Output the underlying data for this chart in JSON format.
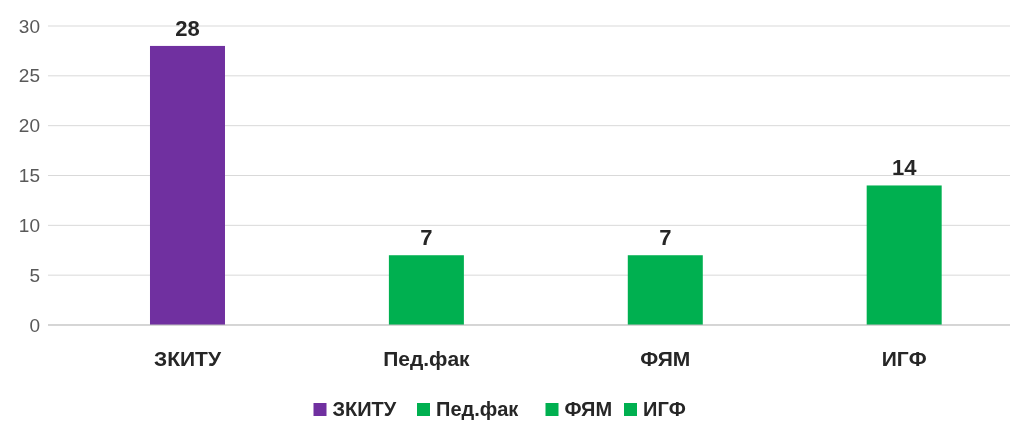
{
  "chart_data": {
    "type": "bar",
    "categories": [
      "ЗКИТУ",
      "Пед.фак",
      "ФЯМ",
      "ИГФ"
    ],
    "series": [
      {
        "name": "ЗКИТУ",
        "color": "#7030a0",
        "values": [
          28,
          null,
          null,
          null
        ]
      },
      {
        "name": "Пед.фак",
        "color": "#00b050",
        "values": [
          null,
          7,
          null,
          null
        ]
      },
      {
        "name": "ФЯМ",
        "color": "#00b050",
        "values": [
          null,
          null,
          7,
          null
        ]
      },
      {
        "name": "ИГФ",
        "color": "#00b050",
        "values": [
          null,
          null,
          null,
          14
        ]
      }
    ],
    "ylim": [
      0,
      30
    ],
    "yticks": [
      0,
      5,
      10,
      15,
      20,
      25,
      30
    ],
    "grid": "y",
    "data_labels": true,
    "legend": "bottom"
  }
}
